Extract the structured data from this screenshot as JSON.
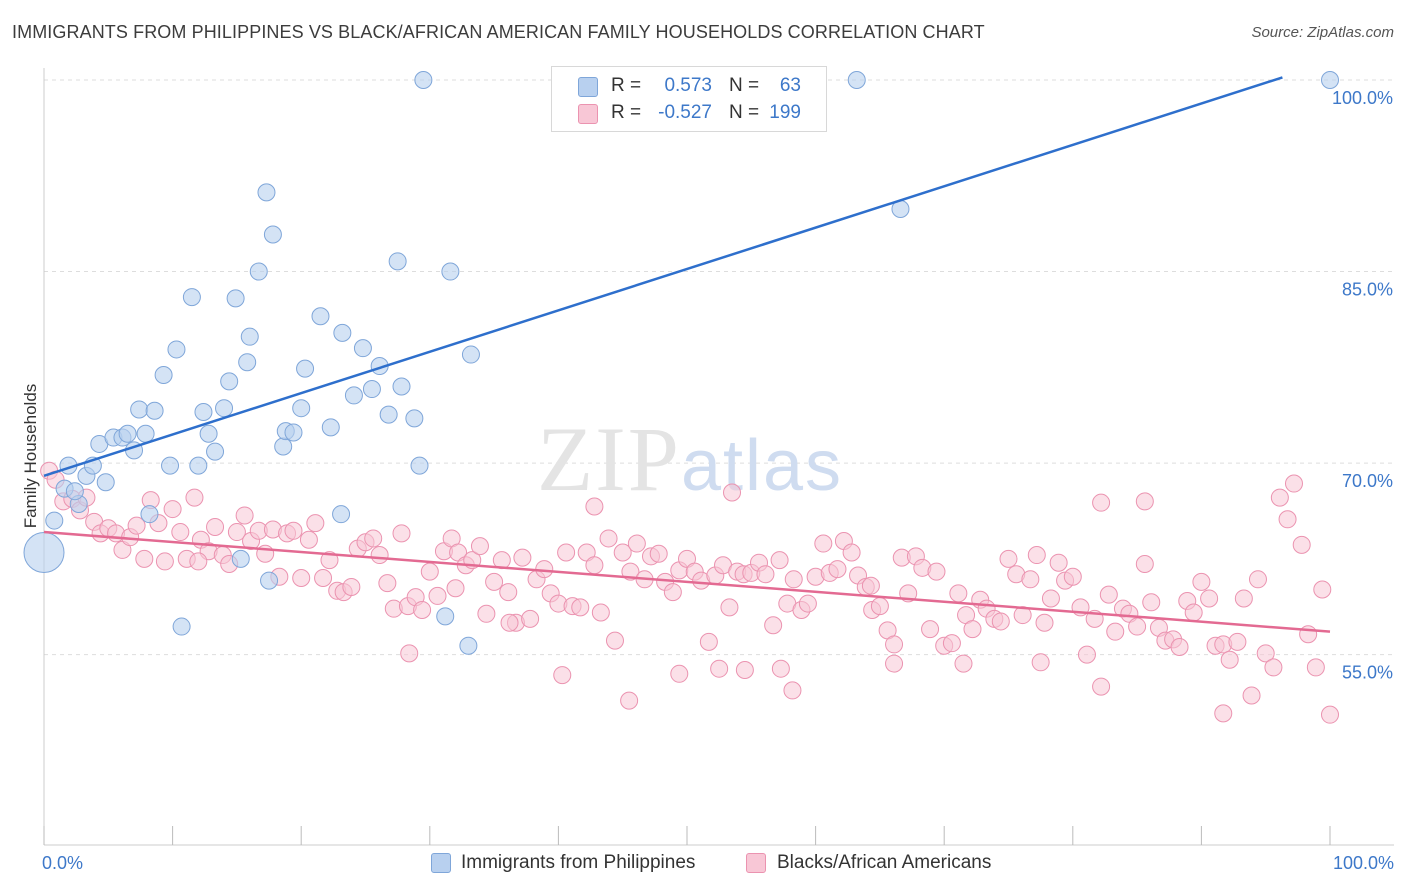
{
  "header": {
    "title": "IMMIGRANTS FROM PHILIPPINES VS BLACK/AFRICAN AMERICAN FAMILY HOUSEHOLDS CORRELATION CHART",
    "source": "Source: ZipAtlas.com"
  },
  "watermark": "ZIPatlas",
  "legend": {
    "series1": {
      "r_label": "R =",
      "r_value": "0.573",
      "n_label": "N =",
      "n_value": "63"
    },
    "series2": {
      "r_label": "R =",
      "r_value": "-0.527",
      "n_label": "N =",
      "n_value": "199"
    }
  },
  "colors": {
    "blue_fill": "#b8d0ef",
    "blue_stroke": "#7fa6d9",
    "blue_line": "#2e6fcc",
    "pink_fill": "#f8c7d6",
    "pink_stroke": "#eb93b0",
    "pink_line": "#e36a92",
    "tick_text": "#3d78c9",
    "grid": "#dddddd"
  },
  "chart_data": {
    "type": "scatter",
    "title": "IMMIGRANTS FROM PHILIPPINES VS BLACK/AFRICAN AMERICAN FAMILY HOUSEHOLDS CORRELATION CHART",
    "xlabel": "",
    "ylabel": "Family Households",
    "xlim": [
      0,
      100
    ],
    "ylim": [
      40,
      102
    ],
    "x_tick_labels": [
      "0.0%",
      "100.0%"
    ],
    "y_ticks": [
      55,
      70,
      85,
      100
    ],
    "y_tick_labels": [
      "55.0%",
      "70.0%",
      "85.0%",
      "100.0%"
    ],
    "grid": true,
    "legend_position": "top-center",
    "series": [
      {
        "name": "Immigrants from Philippines",
        "r": 0.573,
        "n": 63,
        "trend": {
          "x": [
            0,
            96.3
          ],
          "y": [
            69.0,
            100.2
          ]
        },
        "points": [
          [
            0.0,
            63.0,
            1
          ],
          [
            0.8,
            65.5,
            0
          ],
          [
            1.6,
            68.0,
            0
          ],
          [
            2.7,
            66.8,
            0
          ],
          [
            3.3,
            69.0,
            0
          ],
          [
            3.8,
            69.8,
            0
          ],
          [
            1.9,
            69.8,
            0
          ],
          [
            4.8,
            68.5,
            0
          ],
          [
            4.3,
            71.5,
            0
          ],
          [
            5.4,
            72.0,
            0
          ],
          [
            6.1,
            72.0,
            0
          ],
          [
            6.5,
            72.3,
            0
          ],
          [
            7.0,
            71.0,
            0
          ],
          [
            7.9,
            72.3,
            0
          ],
          [
            7.4,
            74.2,
            0
          ],
          [
            8.6,
            74.1,
            0
          ],
          [
            9.3,
            76.9,
            0
          ],
          [
            9.8,
            69.8,
            0
          ],
          [
            10.3,
            78.9,
            0
          ],
          [
            11.5,
            83.0,
            0
          ],
          [
            12.0,
            69.8,
            0
          ],
          [
            12.4,
            74.0,
            0
          ],
          [
            12.8,
            72.3,
            0
          ],
          [
            13.3,
            70.9,
            0
          ],
          [
            14.0,
            74.3,
            0
          ],
          [
            14.4,
            76.4,
            0
          ],
          [
            14.9,
            82.9,
            0
          ],
          [
            15.8,
            77.9,
            0
          ],
          [
            16.0,
            79.9,
            0
          ],
          [
            16.7,
            85.0,
            0
          ],
          [
            17.3,
            91.2,
            0
          ],
          [
            17.8,
            87.9,
            0
          ],
          [
            18.6,
            71.3,
            0
          ],
          [
            18.8,
            72.5,
            0
          ],
          [
            19.4,
            72.4,
            0
          ],
          [
            20.0,
            74.3,
            0
          ],
          [
            20.3,
            77.4,
            0
          ],
          [
            21.5,
            81.5,
            0
          ],
          [
            22.3,
            72.8,
            0
          ],
          [
            23.2,
            80.2,
            0
          ],
          [
            24.1,
            75.3,
            0
          ],
          [
            24.8,
            79.0,
            0
          ],
          [
            25.5,
            75.8,
            0
          ],
          [
            26.1,
            77.6,
            0
          ],
          [
            26.8,
            73.8,
            0
          ],
          [
            27.5,
            85.8,
            0
          ],
          [
            27.8,
            76.0,
            0
          ],
          [
            28.8,
            73.5,
            0
          ],
          [
            29.2,
            69.8,
            0
          ],
          [
            29.5,
            100.0,
            0
          ],
          [
            31.2,
            58.0,
            0
          ],
          [
            31.6,
            85.0,
            0
          ],
          [
            33.2,
            78.5,
            0
          ],
          [
            33.0,
            55.7,
            0
          ],
          [
            10.7,
            57.2,
            0
          ],
          [
            8.2,
            66.0,
            0
          ],
          [
            15.3,
            62.5,
            0
          ],
          [
            17.5,
            60.8,
            0
          ],
          [
            23.1,
            66.0,
            0
          ],
          [
            63.2,
            100.0,
            0
          ],
          [
            66.6,
            89.9,
            0
          ],
          [
            100.0,
            100.0,
            0
          ],
          [
            2.4,
            67.8,
            0
          ]
        ]
      },
      {
        "name": "Blacks/African Americans",
        "r": -0.527,
        "n": 199,
        "trend": {
          "x": [
            0,
            100
          ],
          "y": [
            64.6,
            56.8
          ]
        },
        "points": [
          [
            0.4,
            69.4
          ],
          [
            0.9,
            68.7
          ],
          [
            1.5,
            67.0
          ],
          [
            2.2,
            67.2
          ],
          [
            2.8,
            66.3
          ],
          [
            3.3,
            67.3
          ],
          [
            3.9,
            65.4
          ],
          [
            4.4,
            64.5
          ],
          [
            5.0,
            64.9
          ],
          [
            5.6,
            64.5
          ],
          [
            6.1,
            63.2
          ],
          [
            6.7,
            64.2
          ],
          [
            7.2,
            65.1
          ],
          [
            7.8,
            62.5
          ],
          [
            8.3,
            67.1
          ],
          [
            8.9,
            65.3
          ],
          [
            9.4,
            62.3
          ],
          [
            10.0,
            66.4
          ],
          [
            10.6,
            64.6
          ],
          [
            11.1,
            62.5
          ],
          [
            11.7,
            67.3
          ],
          [
            12.2,
            64.0
          ],
          [
            12.8,
            63.1
          ],
          [
            13.3,
            65.0
          ],
          [
            13.9,
            62.8
          ],
          [
            14.4,
            62.1
          ],
          [
            15.0,
            64.6
          ],
          [
            15.6,
            65.9
          ],
          [
            16.1,
            63.9
          ],
          [
            16.7,
            64.7
          ],
          [
            17.2,
            62.9
          ],
          [
            17.8,
            64.8
          ],
          [
            18.3,
            61.1
          ],
          [
            18.9,
            64.5
          ],
          [
            19.4,
            64.7
          ],
          [
            20.0,
            61.0
          ],
          [
            20.6,
            64.0
          ],
          [
            21.1,
            65.3
          ],
          [
            21.7,
            61.0
          ],
          [
            22.2,
            62.4
          ],
          [
            22.8,
            60.0
          ],
          [
            23.3,
            59.9
          ],
          [
            23.9,
            60.3
          ],
          [
            24.4,
            63.3
          ],
          [
            25.0,
            63.8
          ],
          [
            25.6,
            64.1
          ],
          [
            26.1,
            62.8
          ],
          [
            26.7,
            60.6
          ],
          [
            27.2,
            58.6
          ],
          [
            27.8,
            64.5
          ],
          [
            28.3,
            58.8
          ],
          [
            28.9,
            59.5
          ],
          [
            29.4,
            58.5
          ],
          [
            30.0,
            61.5
          ],
          [
            30.6,
            59.6
          ],
          [
            31.1,
            63.1
          ],
          [
            31.7,
            64.1
          ],
          [
            32.2,
            63.0
          ],
          [
            32.8,
            62.0
          ],
          [
            33.3,
            62.4
          ],
          [
            33.9,
            63.5
          ],
          [
            34.4,
            58.2
          ],
          [
            35.0,
            60.7
          ],
          [
            35.6,
            62.4
          ],
          [
            36.1,
            59.9
          ],
          [
            36.7,
            57.5
          ],
          [
            37.2,
            62.6
          ],
          [
            37.8,
            57.8
          ],
          [
            38.3,
            60.9
          ],
          [
            38.9,
            61.7
          ],
          [
            39.4,
            59.8
          ],
          [
            40.0,
            59.0
          ],
          [
            40.6,
            63.0
          ],
          [
            41.1,
            58.8
          ],
          [
            41.7,
            58.7
          ],
          [
            42.2,
            63.0
          ],
          [
            42.8,
            62.0
          ],
          [
            43.3,
            58.3
          ],
          [
            43.9,
            64.1
          ],
          [
            44.4,
            56.1
          ],
          [
            45.0,
            63.0
          ],
          [
            45.6,
            61.5
          ],
          [
            46.1,
            63.7
          ],
          [
            46.7,
            60.9
          ],
          [
            47.2,
            62.7
          ],
          [
            47.8,
            62.9
          ],
          [
            48.3,
            60.7
          ],
          [
            48.9,
            59.9
          ],
          [
            49.4,
            61.6
          ],
          [
            50.0,
            62.5
          ],
          [
            50.6,
            61.5
          ],
          [
            51.1,
            60.8
          ],
          [
            51.7,
            56.0
          ],
          [
            52.2,
            61.2
          ],
          [
            52.8,
            62.0
          ],
          [
            53.3,
            58.7
          ],
          [
            53.9,
            61.5
          ],
          [
            54.4,
            61.3
          ],
          [
            55.0,
            61.4
          ],
          [
            55.6,
            62.2
          ],
          [
            56.1,
            61.3
          ],
          [
            56.7,
            57.3
          ],
          [
            57.2,
            62.4
          ],
          [
            57.8,
            59.0
          ],
          [
            58.3,
            60.9
          ],
          [
            58.9,
            58.5
          ],
          [
            59.4,
            59.0
          ],
          [
            60.0,
            61.1
          ],
          [
            60.6,
            63.7
          ],
          [
            61.1,
            61.4
          ],
          [
            61.7,
            61.7
          ],
          [
            62.2,
            63.9
          ],
          [
            62.8,
            63.0
          ],
          [
            63.3,
            61.2
          ],
          [
            63.9,
            60.3
          ],
          [
            64.4,
            58.5
          ],
          [
            65.0,
            58.8
          ],
          [
            65.6,
            56.9
          ],
          [
            66.1,
            55.8
          ],
          [
            66.7,
            62.6
          ],
          [
            67.2,
            59.8
          ],
          [
            67.8,
            62.7
          ],
          [
            68.3,
            61.8
          ],
          [
            68.9,
            57.0
          ],
          [
            69.4,
            61.5
          ],
          [
            70.0,
            55.7
          ],
          [
            70.6,
            55.9
          ],
          [
            71.1,
            59.8
          ],
          [
            71.7,
            58.1
          ],
          [
            72.2,
            57.0
          ],
          [
            72.8,
            59.3
          ],
          [
            73.3,
            58.6
          ],
          [
            73.9,
            57.8
          ],
          [
            74.4,
            57.6
          ],
          [
            75.0,
            62.5
          ],
          [
            75.6,
            61.3
          ],
          [
            76.1,
            58.1
          ],
          [
            76.7,
            60.9
          ],
          [
            77.2,
            62.8
          ],
          [
            77.8,
            57.5
          ],
          [
            78.3,
            59.4
          ],
          [
            78.9,
            62.2
          ],
          [
            79.4,
            60.8
          ],
          [
            80.0,
            61.1
          ],
          [
            80.6,
            58.7
          ],
          [
            81.1,
            55.0
          ],
          [
            81.7,
            57.8
          ],
          [
            82.2,
            52.5
          ],
          [
            82.8,
            59.7
          ],
          [
            83.3,
            56.8
          ],
          [
            83.9,
            58.6
          ],
          [
            84.4,
            58.2
          ],
          [
            85.0,
            57.2
          ],
          [
            85.6,
            62.1
          ],
          [
            86.1,
            59.1
          ],
          [
            86.7,
            57.1
          ],
          [
            87.2,
            56.1
          ],
          [
            87.8,
            56.2
          ],
          [
            88.3,
            55.6
          ],
          [
            88.9,
            59.2
          ],
          [
            89.4,
            58.3
          ],
          [
            90.0,
            60.7
          ],
          [
            90.6,
            59.4
          ],
          [
            91.1,
            55.7
          ],
          [
            91.7,
            55.8
          ],
          [
            92.2,
            54.6
          ],
          [
            92.8,
            56.0
          ],
          [
            93.3,
            59.4
          ],
          [
            93.9,
            51.8
          ],
          [
            94.4,
            60.9
          ],
          [
            95.0,
            55.1
          ],
          [
            95.6,
            54.0
          ],
          [
            96.1,
            67.3
          ],
          [
            96.7,
            65.6
          ],
          [
            97.2,
            68.4
          ],
          [
            97.8,
            63.6
          ],
          [
            98.3,
            56.6
          ],
          [
            98.9,
            54.0
          ],
          [
            99.4,
            60.1
          ],
          [
            100.0,
            50.3
          ],
          [
            64.3,
            60.4
          ],
          [
            45.5,
            51.4
          ],
          [
            40.3,
            53.4
          ],
          [
            53.5,
            67.7
          ],
          [
            85.6,
            67.0
          ],
          [
            82.2,
            66.9
          ],
          [
            91.7,
            50.4
          ],
          [
            42.8,
            66.6
          ],
          [
            58.2,
            52.2
          ],
          [
            36.2,
            57.5
          ],
          [
            28.4,
            55.1
          ],
          [
            71.5,
            54.3
          ],
          [
            77.5,
            54.4
          ],
          [
            54.5,
            53.8
          ],
          [
            52.5,
            53.9
          ],
          [
            66.1,
            54.3
          ],
          [
            57.3,
            53.9
          ],
          [
            32.0,
            60.2
          ],
          [
            49.4,
            53.5
          ],
          [
            12.0,
            62.3
          ]
        ]
      }
    ]
  },
  "bottom_legend": {
    "item1": "Immigrants from Philippines",
    "item2": "Blacks/African Americans"
  }
}
